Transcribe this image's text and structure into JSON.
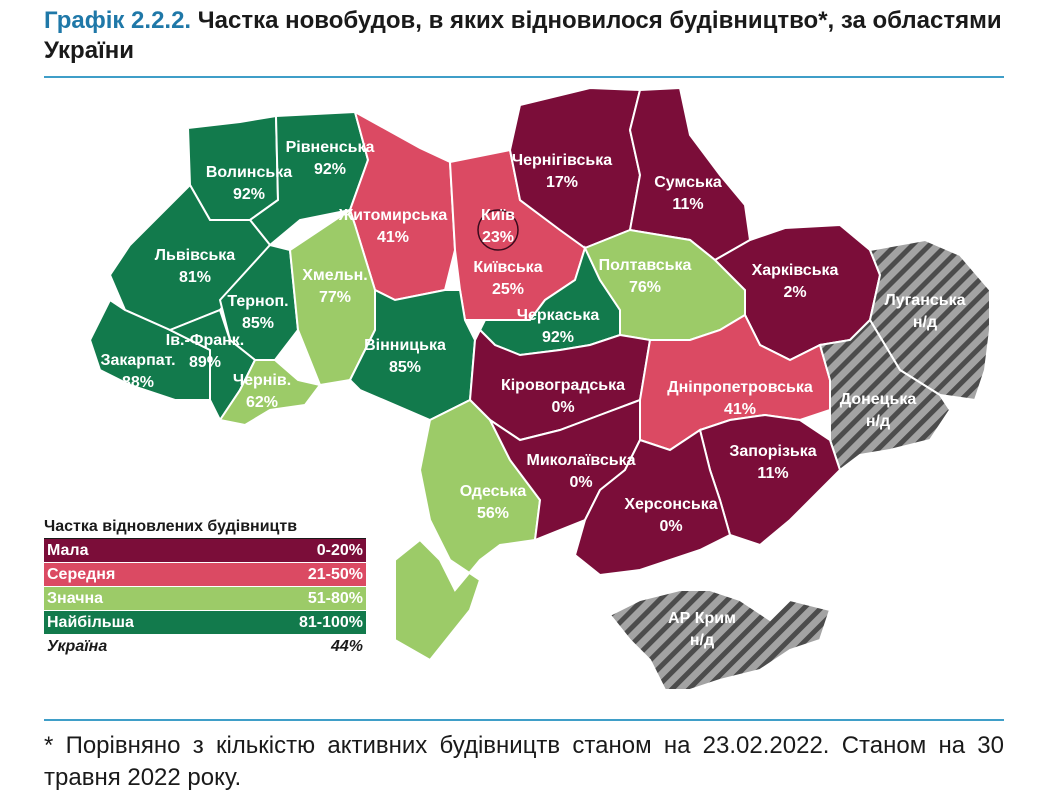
{
  "header": {
    "figure_number": "Графік 2.2.2.",
    "title": "Частка новобудов, в яких відновилося будівництво*, за областями України"
  },
  "colors": {
    "low": "#7b0d39",
    "medium": "#db4a63",
    "high": "#9ccb68",
    "highest": "#127a4c",
    "no_data": "#9d9d9d",
    "border": "#ffffff",
    "accent": "#3f9ec8"
  },
  "legend": {
    "title": "Частка відновлених будівництв",
    "categories": [
      {
        "label": "Мала",
        "range": "0-20%",
        "color": "#7b0d39"
      },
      {
        "label": "Середня",
        "range": "21-50%",
        "color": "#db4a63"
      },
      {
        "label": "Значна",
        "range": "51-80%",
        "color": "#9ccb68"
      },
      {
        "label": "Найбільша",
        "range": "81-100%",
        "color": "#127a4c"
      }
    ],
    "total_label": "Україна",
    "total_value": "44%"
  },
  "regions": [
    {
      "name": "Волинська",
      "value": "92%",
      "category": "highest"
    },
    {
      "name": "Рівненська",
      "value": "92%",
      "category": "highest"
    },
    {
      "name": "Житомирська",
      "value": "41%",
      "category": "medium"
    },
    {
      "name": "Київська",
      "value": "25%",
      "category": "medium"
    },
    {
      "name": "Київ",
      "value": "23%",
      "category": "medium"
    },
    {
      "name": "Чернігівська",
      "value": "17%",
      "category": "low"
    },
    {
      "name": "Сумська",
      "value": "11%",
      "category": "low"
    },
    {
      "name": "Львівська",
      "value": "81%",
      "category": "highest"
    },
    {
      "name": "Терноп.",
      "value": "85%",
      "category": "highest"
    },
    {
      "name": "Хмельн.",
      "value": "77%",
      "category": "high"
    },
    {
      "name": "Вінницька",
      "value": "85%",
      "category": "highest"
    },
    {
      "name": "Черкаська",
      "value": "92%",
      "category": "highest"
    },
    {
      "name": "Полтавська",
      "value": "76%",
      "category": "high"
    },
    {
      "name": "Харківська",
      "value": "2%",
      "category": "low"
    },
    {
      "name": "Луганська",
      "value": "н/д",
      "category": "no_data"
    },
    {
      "name": "Закарпат.",
      "value": "88%",
      "category": "highest"
    },
    {
      "name": "Ів.-Франк.",
      "value": "89%",
      "category": "highest"
    },
    {
      "name": "Чернів.",
      "value": "62%",
      "category": "high"
    },
    {
      "name": "Кіровоградська",
      "value": "0%",
      "category": "low"
    },
    {
      "name": "Дніпропетровська",
      "value": "41%",
      "category": "medium"
    },
    {
      "name": "Донецька",
      "value": "н/д",
      "category": "no_data"
    },
    {
      "name": "Одеська",
      "value": "56%",
      "category": "high"
    },
    {
      "name": "Миколаївська",
      "value": "0%",
      "category": "low"
    },
    {
      "name": "Запорізька",
      "value": "11%",
      "category": "low"
    },
    {
      "name": "Херсонська",
      "value": "0%",
      "category": "low"
    },
    {
      "name": "АР Крим",
      "value": "н/д",
      "category": "no_data"
    }
  ],
  "footnote": "* Порівняно з кількістю активних будівництв станом на 23.02.2022. Станом на 30 травня 2022 року."
}
